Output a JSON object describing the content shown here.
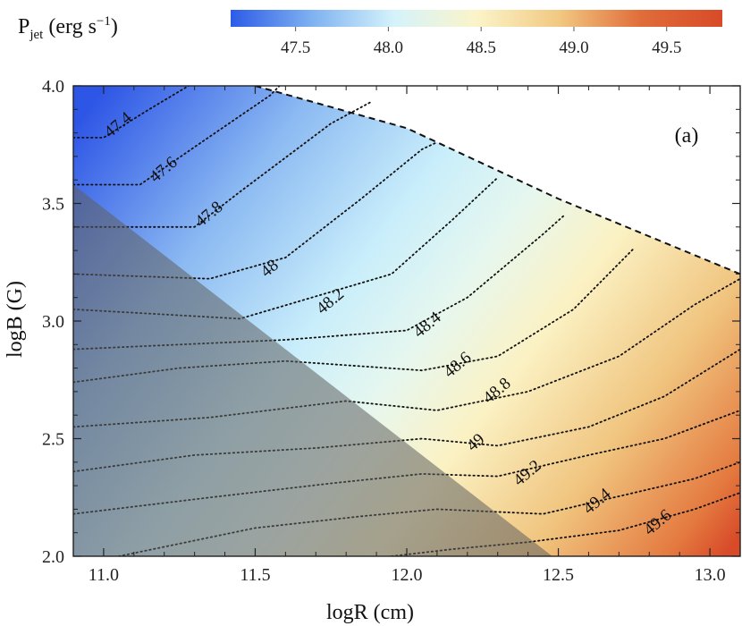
{
  "colorbar": {
    "title_main": "P",
    "title_sub": "jet",
    "title_unit_open": " (erg s",
    "title_sup": "−1",
    "title_unit_close": ")",
    "ticks": [
      "47.5",
      "48.0",
      "48.5",
      "49.0",
      "49.5"
    ],
    "tick_values": [
      47.5,
      48.0,
      48.5,
      49.0,
      49.5
    ],
    "range": [
      47.15,
      49.8
    ],
    "colors": [
      "#2d5be8",
      "#7fb2f0",
      "#d5f3fb",
      "#fbf4c9",
      "#f2c982",
      "#e06d3a",
      "#d84a28"
    ]
  },
  "chart_data": {
    "type": "heatmap",
    "title": "",
    "panel_label": "(a)",
    "xlabel": "logR (cm)",
    "ylabel": "logB (G)",
    "xlim": [
      10.9,
      13.1
    ],
    "ylim": [
      2.0,
      4.0
    ],
    "xticks": [
      "11.0",
      "11.5",
      "12.0",
      "12.5",
      "13.0"
    ],
    "xtick_values": [
      11.0,
      11.5,
      12.0,
      12.5,
      13.0
    ],
    "yticks": [
      "2.0",
      "2.5",
      "3.0",
      "3.5",
      "4.0"
    ],
    "ytick_values": [
      2.0,
      2.5,
      3.0,
      3.5,
      4.0
    ],
    "grid": false,
    "boundary_dashed": [
      [
        11.5,
        4.0
      ],
      [
        12.0,
        3.82
      ],
      [
        12.5,
        3.52
      ],
      [
        13.1,
        3.2
      ]
    ],
    "shaded_region": [
      [
        10.9,
        2.0
      ],
      [
        10.9,
        3.58
      ],
      [
        12.48,
        2.0
      ]
    ],
    "contours": [
      {
        "label": "47.4",
        "value": 47.4,
        "label_at": [
          11.05,
          3.83
        ],
        "points": [
          [
            10.9,
            3.78
          ],
          [
            11.0,
            3.78
          ],
          [
            11.15,
            3.9
          ],
          [
            11.28,
            4.0
          ]
        ]
      },
      {
        "label": "47.6",
        "value": 47.6,
        "label_at": [
          11.2,
          3.64
        ],
        "points": [
          [
            10.9,
            3.58
          ],
          [
            11.12,
            3.58
          ],
          [
            11.3,
            3.74
          ],
          [
            11.55,
            3.96
          ],
          [
            11.58,
            4.0
          ]
        ]
      },
      {
        "label": "47.8",
        "value": 47.8,
        "label_at": [
          11.35,
          3.45
        ],
        "points": [
          [
            10.9,
            3.4
          ],
          [
            11.3,
            3.4
          ],
          [
            11.45,
            3.55
          ],
          [
            11.75,
            3.84
          ],
          [
            11.88,
            3.93
          ]
        ]
      },
      {
        "label": "48",
        "value": 48.0,
        "label_at": [
          11.55,
          3.22
        ],
        "points": [
          [
            10.9,
            3.2
          ],
          [
            11.35,
            3.18
          ],
          [
            11.6,
            3.27
          ],
          [
            11.85,
            3.52
          ],
          [
            12.05,
            3.73
          ],
          [
            12.1,
            3.76
          ]
        ]
      },
      {
        "label": "48.2",
        "value": 48.2,
        "label_at": [
          11.75,
          3.08
        ],
        "points": [
          [
            10.9,
            3.05
          ],
          [
            11.45,
            3.01
          ],
          [
            11.95,
            3.2
          ],
          [
            12.15,
            3.43
          ],
          [
            12.3,
            3.61
          ]
        ]
      },
      {
        "label": "48.4",
        "value": 48.4,
        "label_at": [
          12.07,
          2.98
        ],
        "points": [
          [
            10.9,
            2.88
          ],
          [
            11.6,
            2.92
          ],
          [
            12.0,
            2.96
          ],
          [
            12.2,
            3.1
          ],
          [
            12.45,
            3.37
          ],
          [
            12.52,
            3.45
          ]
        ]
      },
      {
        "label": "48.6",
        "value": 48.6,
        "label_at": [
          12.17,
          2.81
        ],
        "points": [
          [
            10.9,
            2.74
          ],
          [
            11.25,
            2.8
          ],
          [
            11.6,
            2.83
          ],
          [
            12.05,
            2.79
          ],
          [
            12.3,
            2.85
          ],
          [
            12.55,
            3.05
          ],
          [
            12.75,
            3.31
          ]
        ]
      },
      {
        "label": "48.8",
        "value": 48.8,
        "label_at": [
          12.3,
          2.7
        ],
        "points": [
          [
            10.9,
            2.55
          ],
          [
            11.35,
            2.59
          ],
          [
            11.8,
            2.66
          ],
          [
            12.1,
            2.62
          ],
          [
            12.4,
            2.7
          ],
          [
            12.7,
            2.85
          ],
          [
            12.95,
            3.07
          ],
          [
            13.1,
            3.18
          ]
        ]
      },
      {
        "label": "49",
        "value": 49.0,
        "label_at": [
          12.23,
          2.48
        ],
        "points": [
          [
            10.9,
            2.36
          ],
          [
            11.3,
            2.43
          ],
          [
            11.7,
            2.46
          ],
          [
            12.05,
            2.5
          ],
          [
            12.3,
            2.47
          ],
          [
            12.6,
            2.55
          ],
          [
            12.85,
            2.68
          ],
          [
            13.1,
            2.88
          ]
        ]
      },
      {
        "label": "49.2",
        "value": 49.2,
        "label_at": [
          12.4,
          2.35
        ],
        "points": [
          [
            10.9,
            2.18
          ],
          [
            11.35,
            2.25
          ],
          [
            11.75,
            2.31
          ],
          [
            12.05,
            2.35
          ],
          [
            12.3,
            2.34
          ],
          [
            12.6,
            2.43
          ],
          [
            12.85,
            2.5
          ],
          [
            13.1,
            2.62
          ]
        ]
      },
      {
        "label": "49.4",
        "value": 49.4,
        "label_at": [
          12.63,
          2.23
        ],
        "points": [
          [
            11.05,
            2.0
          ],
          [
            11.5,
            2.12
          ],
          [
            11.85,
            2.17
          ],
          [
            12.1,
            2.2
          ],
          [
            12.45,
            2.18
          ],
          [
            12.75,
            2.27
          ],
          [
            12.95,
            2.33
          ],
          [
            13.1,
            2.4
          ]
        ]
      },
      {
        "label": "49.6",
        "value": 49.6,
        "label_at": [
          12.83,
          2.14
        ],
        "points": [
          [
            11.95,
            2.0
          ],
          [
            12.15,
            2.03
          ],
          [
            12.4,
            2.06
          ],
          [
            12.7,
            2.11
          ],
          [
            12.95,
            2.2
          ],
          [
            13.1,
            2.27
          ]
        ]
      }
    ]
  }
}
